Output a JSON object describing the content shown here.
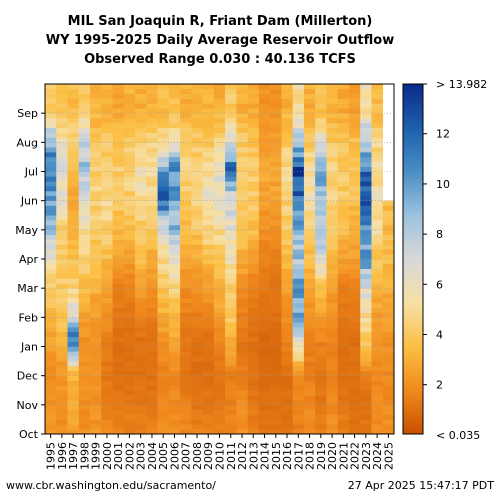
{
  "chart_data": {
    "type": "heatmap",
    "title_lines": [
      "MIL San Joaquin R, Friant Dam (Millerton)",
      "WY 1995-2025 Daily Average Reservoir Outflow",
      "Observed Range 0.030 : 40.136 TCFS"
    ],
    "x_categories": [
      "1995",
      "1996",
      "1997",
      "1998",
      "1999",
      "2000",
      "2001",
      "2002",
      "2003",
      "2004",
      "2005",
      "2006",
      "2007",
      "2008",
      "2009",
      "2010",
      "2011",
      "2012",
      "2013",
      "2014",
      "2015",
      "2016",
      "2017",
      "2018",
      "2019",
      "2020",
      "2021",
      "2022",
      "2023",
      "2024",
      "2025"
    ],
    "y_ticks": [
      "Oct",
      "Nov",
      "Dec",
      "Jan",
      "Feb",
      "Mar",
      "Apr",
      "May",
      "Jun",
      "Jul",
      "Aug",
      "Sep"
    ],
    "colorbar": {
      "min_label": "< 0.035",
      "max_label": "> 13.982",
      "tick_values": [
        2,
        4,
        6,
        8,
        10,
        12
      ],
      "vmin": 0.035,
      "vmax": 13.982,
      "colors": [
        "#c85000",
        "#f08a1e",
        "#fbbf45",
        "#f6e0a6",
        "#d8d8d8",
        "#9cc2df",
        "#4a8ec5",
        "#1e5fad",
        "#0a2a8a"
      ]
    },
    "month_levels": {
      "1995": [
        2.2,
        2.0,
        1.8,
        2.5,
        3.2,
        4.2,
        6.0,
        8.5,
        10.5,
        11.0,
        9.5,
        4.0
      ],
      "1996": [
        2.0,
        2.0,
        2.2,
        3.0,
        3.8,
        4.2,
        4.0,
        4.5,
        6.0,
        7.0,
        5.5,
        3.8
      ],
      "1997": [
        2.5,
        2.8,
        3.2,
        12.5,
        7.0,
        4.2,
        3.5,
        3.0,
        2.8,
        3.5,
        4.5,
        3.5
      ],
      "1998": [
        2.0,
        1.8,
        2.0,
        2.0,
        2.5,
        3.5,
        4.5,
        5.0,
        7.5,
        8.5,
        7.5,
        4.2
      ],
      "1999": [
        2.2,
        2.0,
        2.0,
        2.0,
        2.5,
        3.0,
        3.5,
        4.2,
        4.5,
        4.2,
        3.8,
        3.2
      ],
      "2000": [
        1.8,
        1.5,
        1.2,
        1.5,
        2.0,
        2.8,
        3.5,
        4.5,
        4.8,
        4.5,
        4.0,
        3.0
      ],
      "2001": [
        1.5,
        1.2,
        1.0,
        1.0,
        1.2,
        1.5,
        2.5,
        3.5,
        4.0,
        4.2,
        3.8,
        2.8
      ],
      "2002": [
        1.5,
        1.2,
        1.0,
        1.0,
        1.2,
        1.5,
        2.5,
        3.5,
        4.2,
        4.5,
        4.0,
        3.0
      ],
      "2003": [
        1.5,
        1.2,
        1.0,
        1.0,
        1.5,
        2.5,
        3.5,
        4.0,
        5.0,
        5.5,
        4.5,
        3.0
      ],
      "2004": [
        1.5,
        1.2,
        1.0,
        1.0,
        1.5,
        2.0,
        3.0,
        3.8,
        4.5,
        5.5,
        4.5,
        3.2
      ],
      "2005": [
        2.0,
        1.8,
        1.5,
        2.0,
        3.0,
        4.0,
        5.0,
        7.0,
        12.5,
        9.5,
        5.0,
        3.5
      ],
      "2006": [
        2.0,
        1.8,
        1.8,
        2.5,
        3.5,
        4.5,
        6.5,
        9.0,
        9.5,
        10.5,
        5.5,
        3.5
      ],
      "2007": [
        1.8,
        1.5,
        1.2,
        1.2,
        1.5,
        2.0,
        2.5,
        3.5,
        4.0,
        4.5,
        4.0,
        3.0
      ],
      "2008": [
        1.5,
        1.2,
        1.0,
        1.0,
        1.5,
        2.0,
        3.0,
        4.0,
        4.5,
        4.5,
        4.0,
        3.0
      ],
      "2009": [
        1.5,
        1.2,
        1.0,
        1.0,
        1.5,
        2.5,
        3.5,
        5.0,
        6.0,
        5.0,
        4.0,
        3.0
      ],
      "2010": [
        1.5,
        1.2,
        1.2,
        1.5,
        2.5,
        3.0,
        4.0,
        5.0,
        6.0,
        6.5,
        4.5,
        3.0
      ],
      "2011": [
        1.8,
        1.5,
        1.5,
        3.0,
        4.0,
        4.5,
        5.5,
        6.5,
        7.0,
        11.5,
        6.5,
        4.0
      ],
      "2012": [
        2.0,
        1.8,
        1.5,
        1.2,
        1.5,
        2.0,
        3.0,
        3.8,
        4.5,
        4.5,
        4.0,
        3.0
      ],
      "2013": [
        1.5,
        1.2,
        1.0,
        1.0,
        1.2,
        1.5,
        2.5,
        3.5,
        4.2,
        4.2,
        3.8,
        2.8
      ],
      "2014": [
        1.2,
        1.0,
        0.8,
        0.8,
        1.0,
        1.2,
        1.5,
        2.0,
        2.5,
        2.8,
        2.5,
        2.0
      ],
      "2015": [
        1.2,
        1.0,
        0.8,
        0.8,
        1.0,
        1.2,
        1.5,
        2.0,
        2.5,
        2.8,
        2.5,
        2.0
      ],
      "2016": [
        1.2,
        1.0,
        1.0,
        1.5,
        2.0,
        2.5,
        3.5,
        4.2,
        4.5,
        5.0,
        4.0,
        3.0
      ],
      "2017": [
        1.5,
        1.5,
        2.0,
        6.0,
        10.0,
        9.5,
        8.5,
        9.0,
        12.0,
        13.0,
        8.0,
        5.0
      ],
      "2018": [
        2.0,
        1.8,
        1.5,
        1.5,
        2.0,
        2.5,
        3.5,
        4.5,
        5.5,
        5.0,
        4.0,
        3.0
      ],
      "2019": [
        1.5,
        1.2,
        1.2,
        1.5,
        2.5,
        4.0,
        7.0,
        8.5,
        9.0,
        10.5,
        6.0,
        3.5
      ],
      "2020": [
        2.0,
        1.8,
        1.5,
        1.5,
        2.0,
        2.5,
        3.5,
        4.0,
        4.5,
        4.5,
        4.0,
        3.0
      ],
      "2021": [
        1.5,
        1.2,
        1.0,
        1.0,
        1.2,
        1.5,
        2.5,
        3.5,
        4.0,
        4.2,
        3.8,
        2.8
      ],
      "2022": [
        1.2,
        1.0,
        1.0,
        1.0,
        1.2,
        1.5,
        2.5,
        3.0,
        3.8,
        4.0,
        3.5,
        2.5
      ],
      "2023": [
        1.2,
        1.0,
        1.5,
        4.0,
        5.0,
        7.0,
        10.0,
        9.5,
        13.5,
        11.5,
        8.0,
        5.5
      ],
      "2024": [
        2.0,
        1.8,
        1.8,
        2.0,
        2.5,
        3.0,
        4.0,
        5.0,
        5.5,
        5.0,
        4.5,
        3.5
      ],
      "2025": [
        2.0,
        1.8,
        1.8,
        2.0,
        2.5,
        3.0,
        3.5,
        3.5
      ]
    }
  },
  "footer": {
    "url": "www.cbr.washington.edu/sacramento/",
    "timestamp": "27 Apr 2025 15:47:17 PDT"
  }
}
